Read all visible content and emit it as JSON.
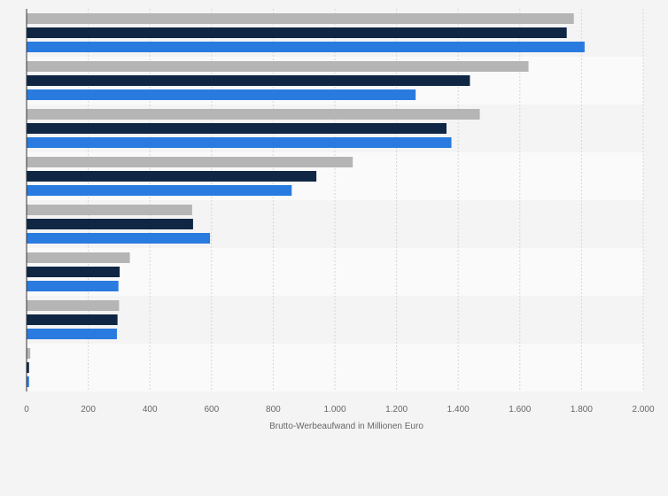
{
  "chart_data": {
    "type": "bar",
    "orientation": "horizontal",
    "title": "",
    "xlabel": "Brutto-Werbeaufwand in Millionen Euro",
    "ylabel": "",
    "xlim": [
      0,
      2000
    ],
    "x_ticks": [
      {
        "value": 0,
        "label": "0"
      },
      {
        "value": 200,
        "label": "200"
      },
      {
        "value": 400,
        "label": "400"
      },
      {
        "value": 600,
        "label": "600"
      },
      {
        "value": 800,
        "label": "800"
      },
      {
        "value": 1000,
        "label": "1.000"
      },
      {
        "value": 1200,
        "label": "1.200"
      },
      {
        "value": 1400,
        "label": "1.400"
      },
      {
        "value": 1600,
        "label": "1.600"
      },
      {
        "value": 1800,
        "label": "1.800"
      },
      {
        "value": 2000,
        "label": "2.000"
      }
    ],
    "category_count": 8,
    "series": [
      {
        "color": "#b5b5b5",
        "values": [
          1775,
          1628,
          1470,
          1058,
          537,
          335,
          300,
          12
        ]
      },
      {
        "color": "#0f2744",
        "values": [
          1752,
          1438,
          1362,
          940,
          540,
          302,
          295,
          8
        ]
      },
      {
        "color": "#2a7be0",
        "values": [
          1810,
          1262,
          1378,
          860,
          595,
          298,
          293,
          8
        ]
      }
    ],
    "grid": true,
    "legend": "none",
    "colors": {
      "background": "#f4f4f4",
      "row_band_light": "#fafafa",
      "grid": "#d6d6d6",
      "axis": "#333333"
    }
  }
}
